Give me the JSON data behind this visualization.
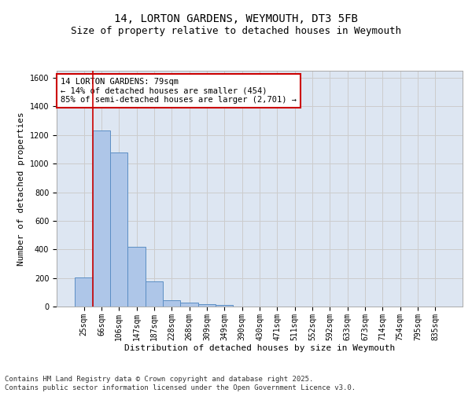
{
  "title_line1": "14, LORTON GARDENS, WEYMOUTH, DT3 5FB",
  "title_line2": "Size of property relative to detached houses in Weymouth",
  "xlabel": "Distribution of detached houses by size in Weymouth",
  "ylabel": "Number of detached properties",
  "categories": [
    "25sqm",
    "66sqm",
    "106sqm",
    "147sqm",
    "187sqm",
    "228sqm",
    "268sqm",
    "309sqm",
    "349sqm",
    "390sqm",
    "430sqm",
    "471sqm",
    "511sqm",
    "552sqm",
    "592sqm",
    "633sqm",
    "673sqm",
    "714sqm",
    "754sqm",
    "795sqm",
    "835sqm"
  ],
  "values": [
    205,
    1232,
    1077,
    416,
    178,
    45,
    28,
    18,
    10,
    0,
    0,
    0,
    0,
    0,
    0,
    0,
    0,
    0,
    0,
    0,
    0
  ],
  "bar_color": "#aec6e8",
  "bar_edge_color": "#5b8ec4",
  "ylim": [
    0,
    1650
  ],
  "yticks": [
    0,
    200,
    400,
    600,
    800,
    1000,
    1200,
    1400,
    1600
  ],
  "grid_color": "#cccccc",
  "background_color": "#dde6f2",
  "vline_x_idx": 1,
  "vline_color": "#cc0000",
  "annotation_line1": "14 LORTON GARDENS: 79sqm",
  "annotation_line2": "← 14% of detached houses are smaller (454)",
  "annotation_line3": "85% of semi-detached houses are larger (2,701) →",
  "annotation_box_color": "#ffffff",
  "annotation_box_edge": "#cc0000",
  "footer_line1": "Contains HM Land Registry data © Crown copyright and database right 2025.",
  "footer_line2": "Contains public sector information licensed under the Open Government Licence v3.0.",
  "title_fontsize": 10,
  "subtitle_fontsize": 9,
  "axis_label_fontsize": 8,
  "tick_fontsize": 7,
  "annotation_fontsize": 7.5,
  "footer_fontsize": 6.5
}
